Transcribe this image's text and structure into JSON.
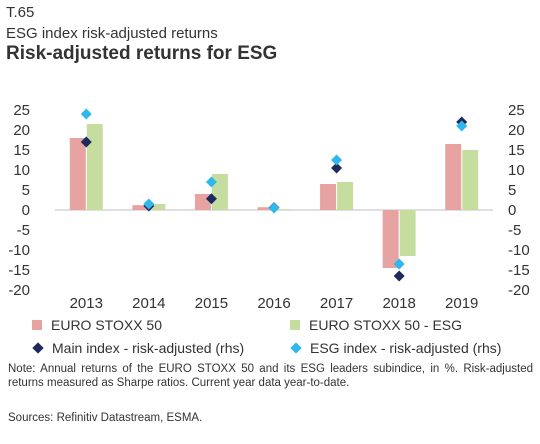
{
  "header": {
    "figure_id": "T.65",
    "subtitle": "ESG index risk-adjusted returns",
    "title": "Risk-adjusted returns for ESG"
  },
  "chart_data": {
    "type": "bar",
    "title": "Risk-adjusted returns for ESG",
    "categories": [
      "2013",
      "2014",
      "2015",
      "2016",
      "2017",
      "2018",
      "2019"
    ],
    "series": [
      {
        "name": "EURO STOXX 50",
        "type": "bar",
        "axis": "left",
        "color": "#e6a3a1",
        "values": [
          18.0,
          1.2,
          4.0,
          0.7,
          6.5,
          -14.5,
          16.5
        ]
      },
      {
        "name": "EURO STOXX 50 - ESG",
        "type": "bar",
        "axis": "left",
        "color": "#c5dea0",
        "values": [
          21.5,
          1.5,
          9.0,
          0.2,
          7.0,
          -11.5,
          15.0
        ]
      },
      {
        "name": "Main index - risk-adjusted (rhs)",
        "type": "scatter",
        "marker": "diamond",
        "axis": "right",
        "color": "#1c2a5c",
        "values": [
          17.0,
          1.0,
          2.8,
          0.6,
          10.5,
          -16.5,
          22.0
        ]
      },
      {
        "name": "ESG index - risk-adjusted (rhs)",
        "type": "scatter",
        "marker": "diamond",
        "axis": "right",
        "color": "#2fb8ec",
        "values": [
          24.0,
          1.5,
          7.0,
          0.5,
          12.5,
          -13.5,
          21.0
        ]
      }
    ],
    "ylim": [
      -20,
      25
    ],
    "y2lim": [
      -20,
      25
    ],
    "yticks": [
      25,
      20,
      15,
      10,
      5,
      0,
      -5,
      -10,
      -15,
      -20
    ],
    "y2ticks": [
      25,
      20,
      15,
      10,
      5,
      0,
      -5,
      -10,
      -15,
      -20
    ],
    "grid": false,
    "legend_position": "bottom"
  },
  "note": "Note: Annual returns of the EURO STOXX 50 and its ESG leaders subindice, in %. Risk-adjusted returns measured as Sharpe ratios. Current year data year-to-date.",
  "source": "Sources: Refinitiv Datastream, ESMA."
}
